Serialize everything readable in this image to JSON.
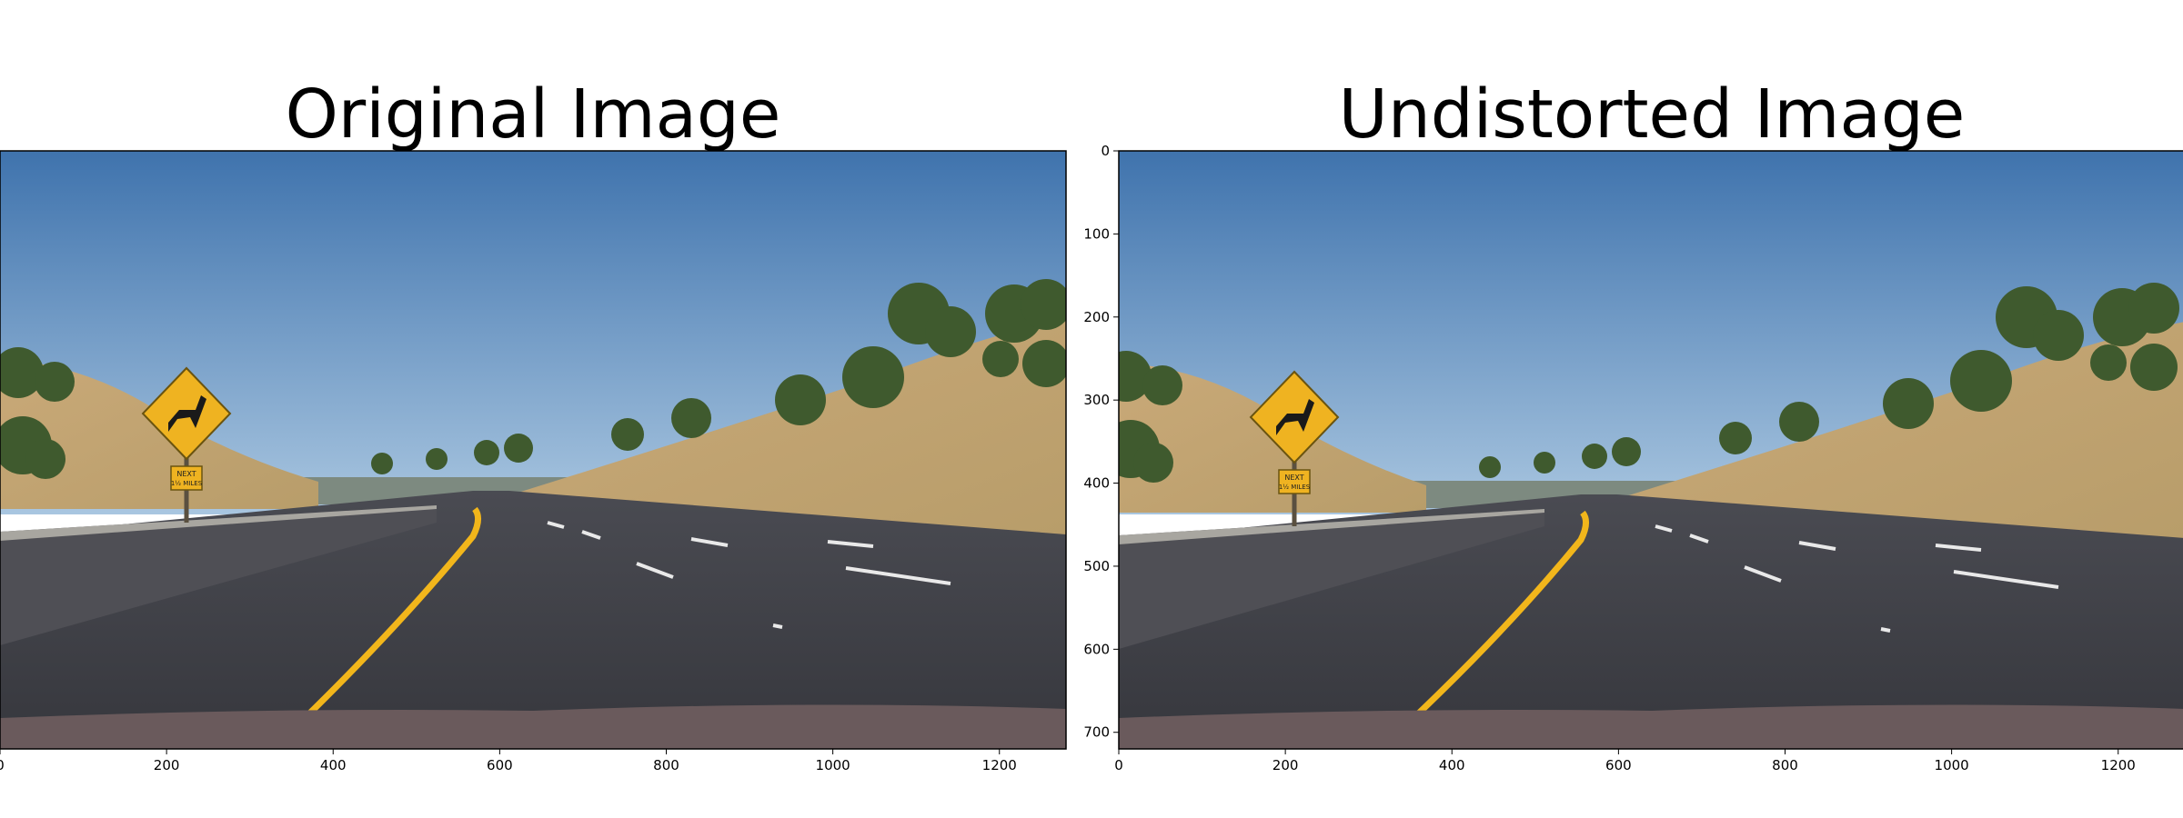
{
  "panels": [
    {
      "title": "Original Image",
      "scene": "original",
      "x_ticks": [
        "0",
        "200",
        "400",
        "600",
        "800",
        "1000",
        "1200"
      ],
      "y_ticks": []
    },
    {
      "title": "Undistorted Image",
      "scene": "undistorted",
      "x_ticks": [
        "0",
        "200",
        "400",
        "600",
        "800",
        "1000",
        "1200"
      ],
      "y_ticks": [
        "0",
        "100",
        "200",
        "300",
        "400",
        "500",
        "600",
        "700"
      ]
    }
  ],
  "sign": {
    "plate_line1": "NEXT",
    "plate_line2": "1½ MILES"
  },
  "colors": {
    "sky_top": "#3f73ad",
    "sky_bottom": "#a9c6e0",
    "road": "#36373d",
    "yellow_line": "#f2b61b",
    "sign_yellow": "#efb321",
    "hillside": "#b89d6a",
    "hood": "#6a5a5c"
  }
}
